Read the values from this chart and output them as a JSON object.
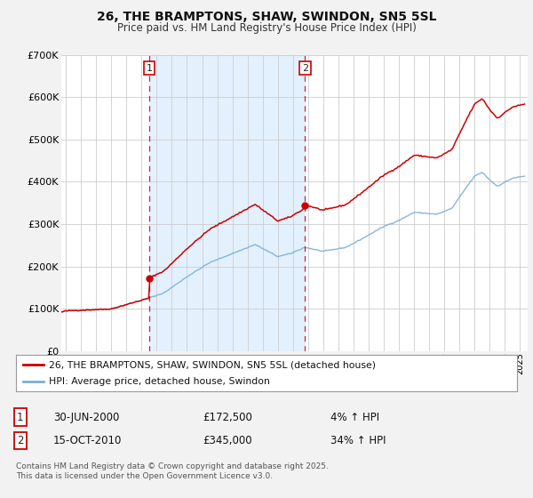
{
  "title": "26, THE BRAMPTONS, SHAW, SWINDON, SN5 5SL",
  "subtitle": "Price paid vs. HM Land Registry's House Price Index (HPI)",
  "bg_color": "#f2f2f2",
  "plot_bg_color": "#ffffff",
  "grid_color": "#cccccc",
  "red_color": "#cc0000",
  "blue_color": "#7bafd4",
  "shade_color": "#ddeeff",
  "ylim": [
    0,
    700000
  ],
  "yticks": [
    0,
    100000,
    200000,
    300000,
    400000,
    500000,
    600000,
    700000
  ],
  "ytick_labels": [
    "£0",
    "£100K",
    "£200K",
    "£300K",
    "£400K",
    "£500K",
    "£600K",
    "£700K"
  ],
  "xlim_start": 1994.7,
  "xlim_end": 2025.5,
  "marker1_x": 2000.5,
  "marker1_y": 172500,
  "marker1_label": "1",
  "marker2_x": 2010.79,
  "marker2_y": 345000,
  "marker2_label": "2",
  "legend_line1": "26, THE BRAMPTONS, SHAW, SWINDON, SN5 5SL (detached house)",
  "legend_line2": "HPI: Average price, detached house, Swindon",
  "annotation1_num": "1",
  "annotation1_date": "30-JUN-2000",
  "annotation1_price": "£172,500",
  "annotation1_hpi": "4% ↑ HPI",
  "annotation2_num": "2",
  "annotation2_date": "15-OCT-2010",
  "annotation2_price": "£345,000",
  "annotation2_hpi": "34% ↑ HPI",
  "footer": "Contains HM Land Registry data © Crown copyright and database right 2025.\nThis data is licensed under the Open Government Licence v3.0."
}
